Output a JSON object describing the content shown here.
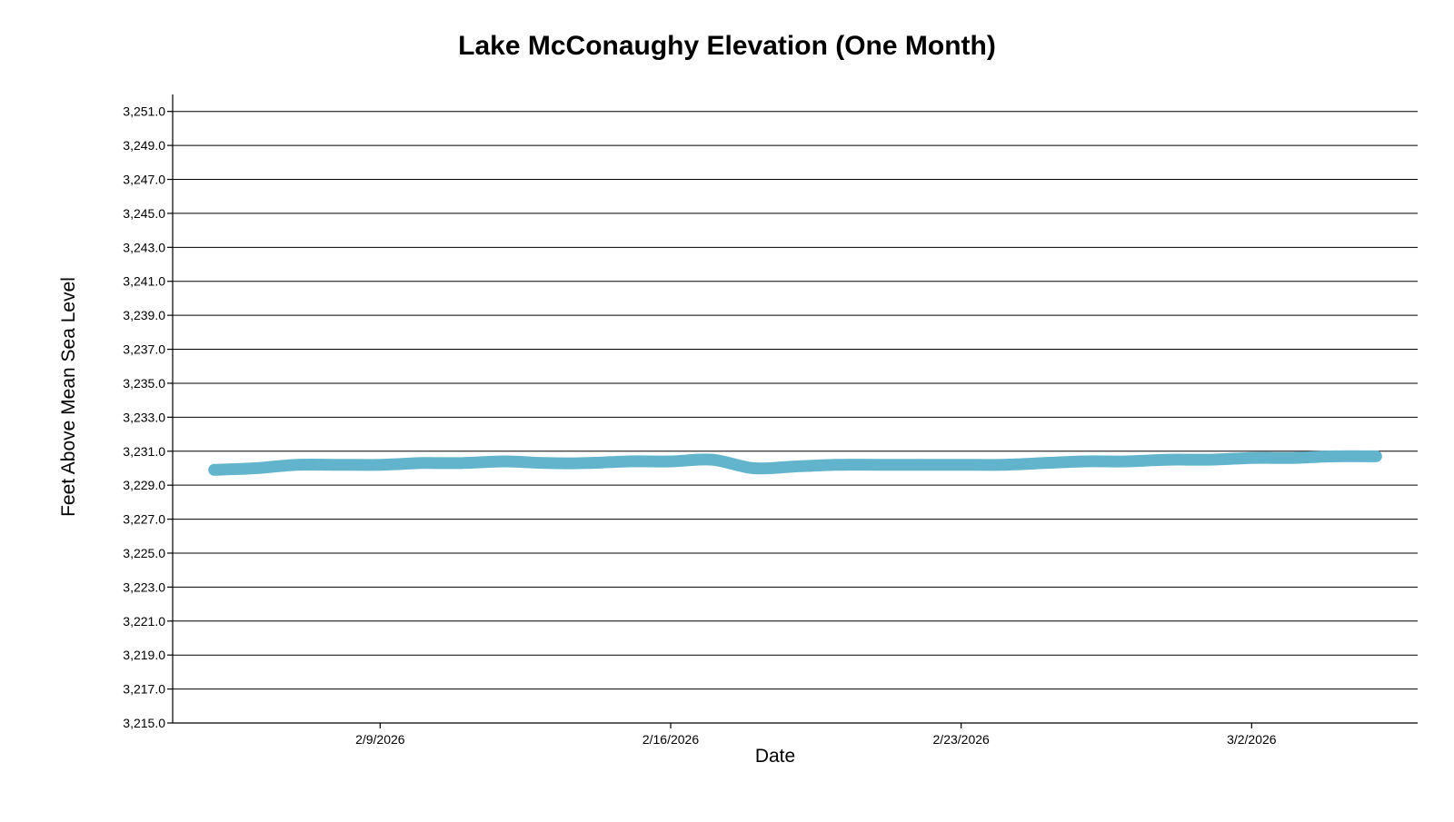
{
  "chart_data": {
    "type": "line",
    "title": "Lake McConaughy Elevation (One Month)",
    "xlabel": "Date",
    "ylabel": "Feet Above Mean Sea Level",
    "ylim": [
      3215.0,
      3252.0
    ],
    "yticks": [
      3215,
      3217,
      3219,
      3221,
      3223,
      3225,
      3227,
      3229,
      3231,
      3233,
      3235,
      3237,
      3239,
      3241,
      3243,
      3245,
      3247,
      3249,
      3251
    ],
    "ytick_labels": [
      "3,215.0",
      "3,217.0",
      "3,219.0",
      "3,221.0",
      "3,223.0",
      "3,225.0",
      "3,227.0",
      "3,229.0",
      "3,231.0",
      "3,233.0",
      "3,235.0",
      "3,237.0",
      "3,239.0",
      "3,241.0",
      "3,243.0",
      "3,245.0",
      "3,247.0",
      "3,249.0",
      "3,251.0"
    ],
    "xlim": [
      "2026-02-04",
      "2026-03-06"
    ],
    "xticks": [
      "2026-02-09",
      "2026-02-16",
      "2026-02-23",
      "2026-03-02"
    ],
    "xtick_labels": [
      "2/9/2026",
      "2/16/2026",
      "2/23/2026",
      "3/2/2026"
    ],
    "grid": true,
    "series": [
      {
        "color": "#62b4cd",
        "x": [
          "2026-02-05",
          "2026-02-06",
          "2026-02-07",
          "2026-02-08",
          "2026-02-09",
          "2026-02-10",
          "2026-02-11",
          "2026-02-12",
          "2026-02-13",
          "2026-02-14",
          "2026-02-15",
          "2026-02-16",
          "2026-02-17",
          "2026-02-18",
          "2026-02-19",
          "2026-02-20",
          "2026-02-21",
          "2026-02-22",
          "2026-02-23",
          "2026-02-24",
          "2026-02-25",
          "2026-02-26",
          "2026-02-27",
          "2026-02-28",
          "2026-03-01",
          "2026-03-02",
          "2026-03-03",
          "2026-03-04",
          "2026-03-05"
        ],
        "y": [
          3229.9,
          3230.0,
          3230.2,
          3230.2,
          3230.2,
          3230.3,
          3230.3,
          3230.4,
          3230.3,
          3230.3,
          3230.4,
          3230.4,
          3230.5,
          3230.0,
          3230.1,
          3230.2,
          3230.2,
          3230.2,
          3230.2,
          3230.2,
          3230.3,
          3230.4,
          3230.4,
          3230.5,
          3230.5,
          3230.6,
          3230.6,
          3230.7,
          3230.7
        ]
      }
    ]
  }
}
